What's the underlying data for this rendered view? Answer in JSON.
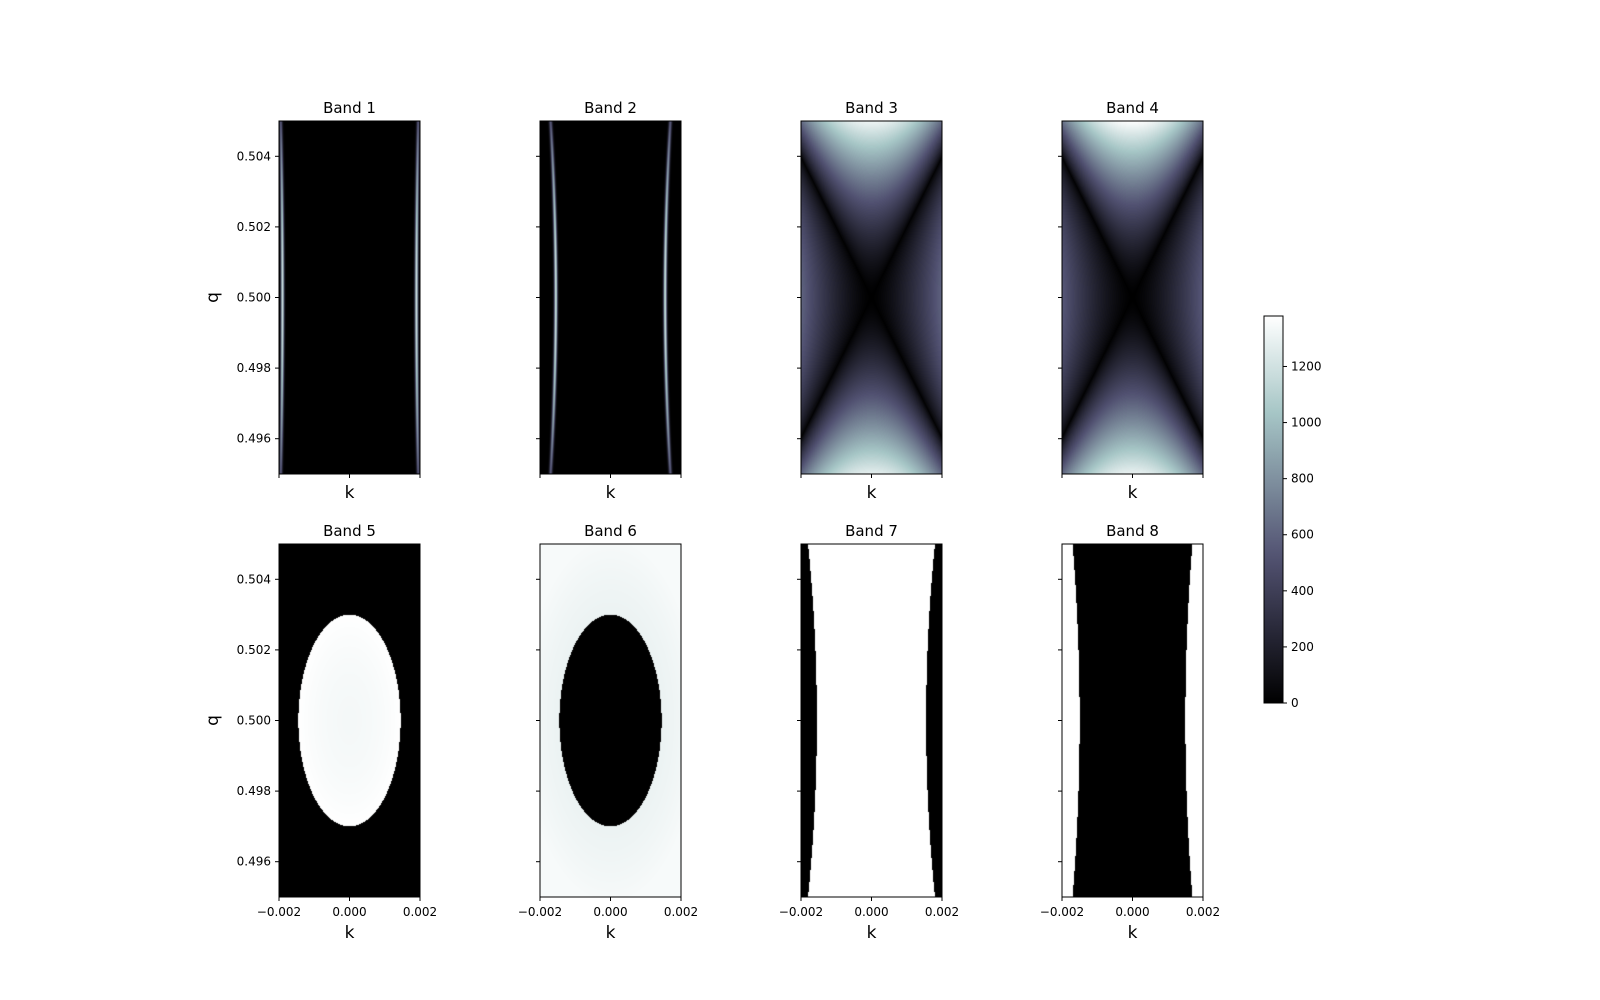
{
  "chart_data": {
    "type": "heatmap",
    "colormap": "bone",
    "xlabel": "k",
    "ylabel": "q",
    "xlim": [
      -0.002,
      0.002
    ],
    "ylim": [
      0.495,
      0.505
    ],
    "x_ticks": [
      "-0.002",
      "0.000",
      "0.002"
    ],
    "y_ticks": [
      "0.504",
      "0.502",
      "0.500",
      "0.498",
      "0.496"
    ],
    "colorbar": {
      "range": [
        0,
        1380
      ],
      "ticks": [
        "0",
        "200",
        "400",
        "600",
        "800",
        "1000",
        "1200"
      ]
    },
    "panels": [
      {
        "title": "Band 1",
        "pattern": "edge_lines_bright",
        "k_edge": 0.0019,
        "k_edge_at_ylim": 0.00195,
        "peak_value": 1200
      },
      {
        "title": "Band 2",
        "pattern": "edge_lines_bright",
        "k_edge": 0.00155,
        "k_edge_at_ylim": 0.0017,
        "peak_value": 1200
      },
      {
        "title": "Band 3",
        "pattern": "saddle",
        "top_value": 1320,
        "bottom_value": 1280,
        "side_value": 600
      },
      {
        "title": "Band 4",
        "pattern": "saddle",
        "top_value": 1380,
        "bottom_value": 1300,
        "side_value": 550
      },
      {
        "title": "Band 5",
        "pattern": "ellipse_high_inside",
        "semi_k": 0.00145,
        "semi_q": 0.003,
        "inside_value": 1380,
        "outside_value": 0
      },
      {
        "title": "Band 6",
        "pattern": "ellipse_low_inside",
        "semi_k": 0.00145,
        "semi_q": 0.003,
        "inside_value": 0,
        "outside_value": 1350
      },
      {
        "title": "Band 7",
        "pattern": "strip_high_center",
        "k_edge": 0.00155,
        "k_edge_at_ylim": 0.0018,
        "inside_value": 1380,
        "outside_value": 0
      },
      {
        "title": "Band 8",
        "pattern": "strip_low_center",
        "k_edge": 0.0015,
        "k_edge_at_ylim": 0.0017,
        "inside_value": 0,
        "outside_value": 1380
      }
    ]
  }
}
